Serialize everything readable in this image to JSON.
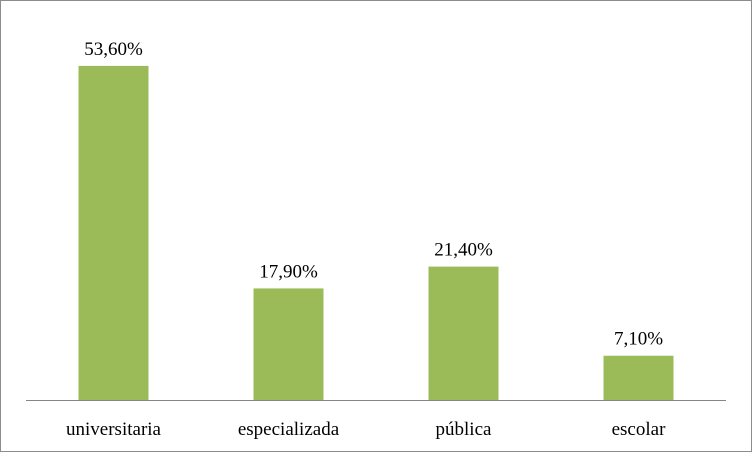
{
  "chart_data": {
    "type": "bar",
    "categories": [
      "universitaria",
      "especializada",
      "pública",
      "escolar"
    ],
    "values": [
      53.6,
      17.9,
      21.4,
      7.1
    ],
    "data_labels": [
      "53,60%",
      "17,90%",
      "21,40%",
      "7,10%"
    ],
    "ylim": [
      0,
      60
    ],
    "grid": false,
    "legend": "none",
    "bar_color": "#9bbb59",
    "axis_color": "#868686"
  }
}
